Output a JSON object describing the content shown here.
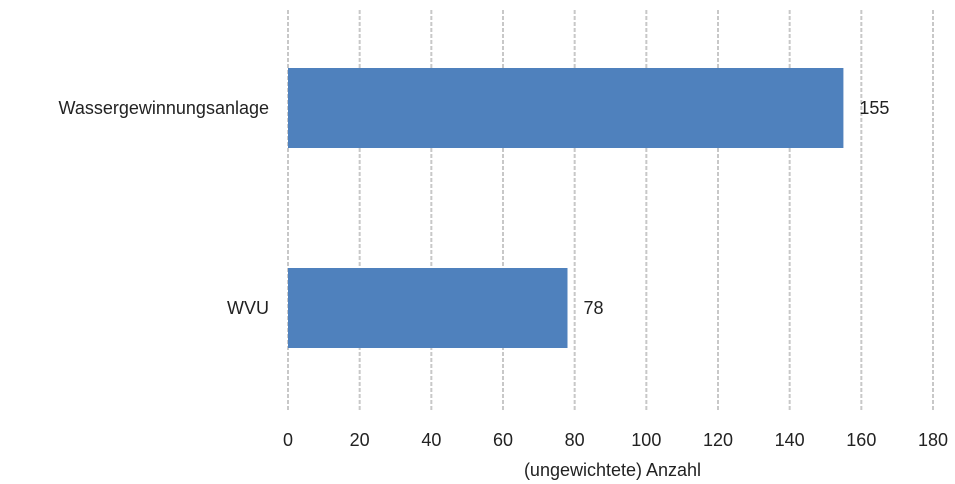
{
  "chart_data": {
    "type": "bar",
    "orientation": "horizontal",
    "categories": [
      "Wassergewinnungsanlage",
      "WVU"
    ],
    "values": [
      155,
      78
    ],
    "data_labels": [
      "155",
      "78"
    ],
    "xlabel": "(ungewichtete) Anzahl",
    "ylabel": "",
    "xlim": [
      0,
      180
    ],
    "xticks": [
      0,
      20,
      40,
      60,
      80,
      100,
      120,
      140,
      160,
      180
    ],
    "grid": "vertical",
    "bar_color": "#4f81bd",
    "grid_color": "#c8c8c8"
  }
}
